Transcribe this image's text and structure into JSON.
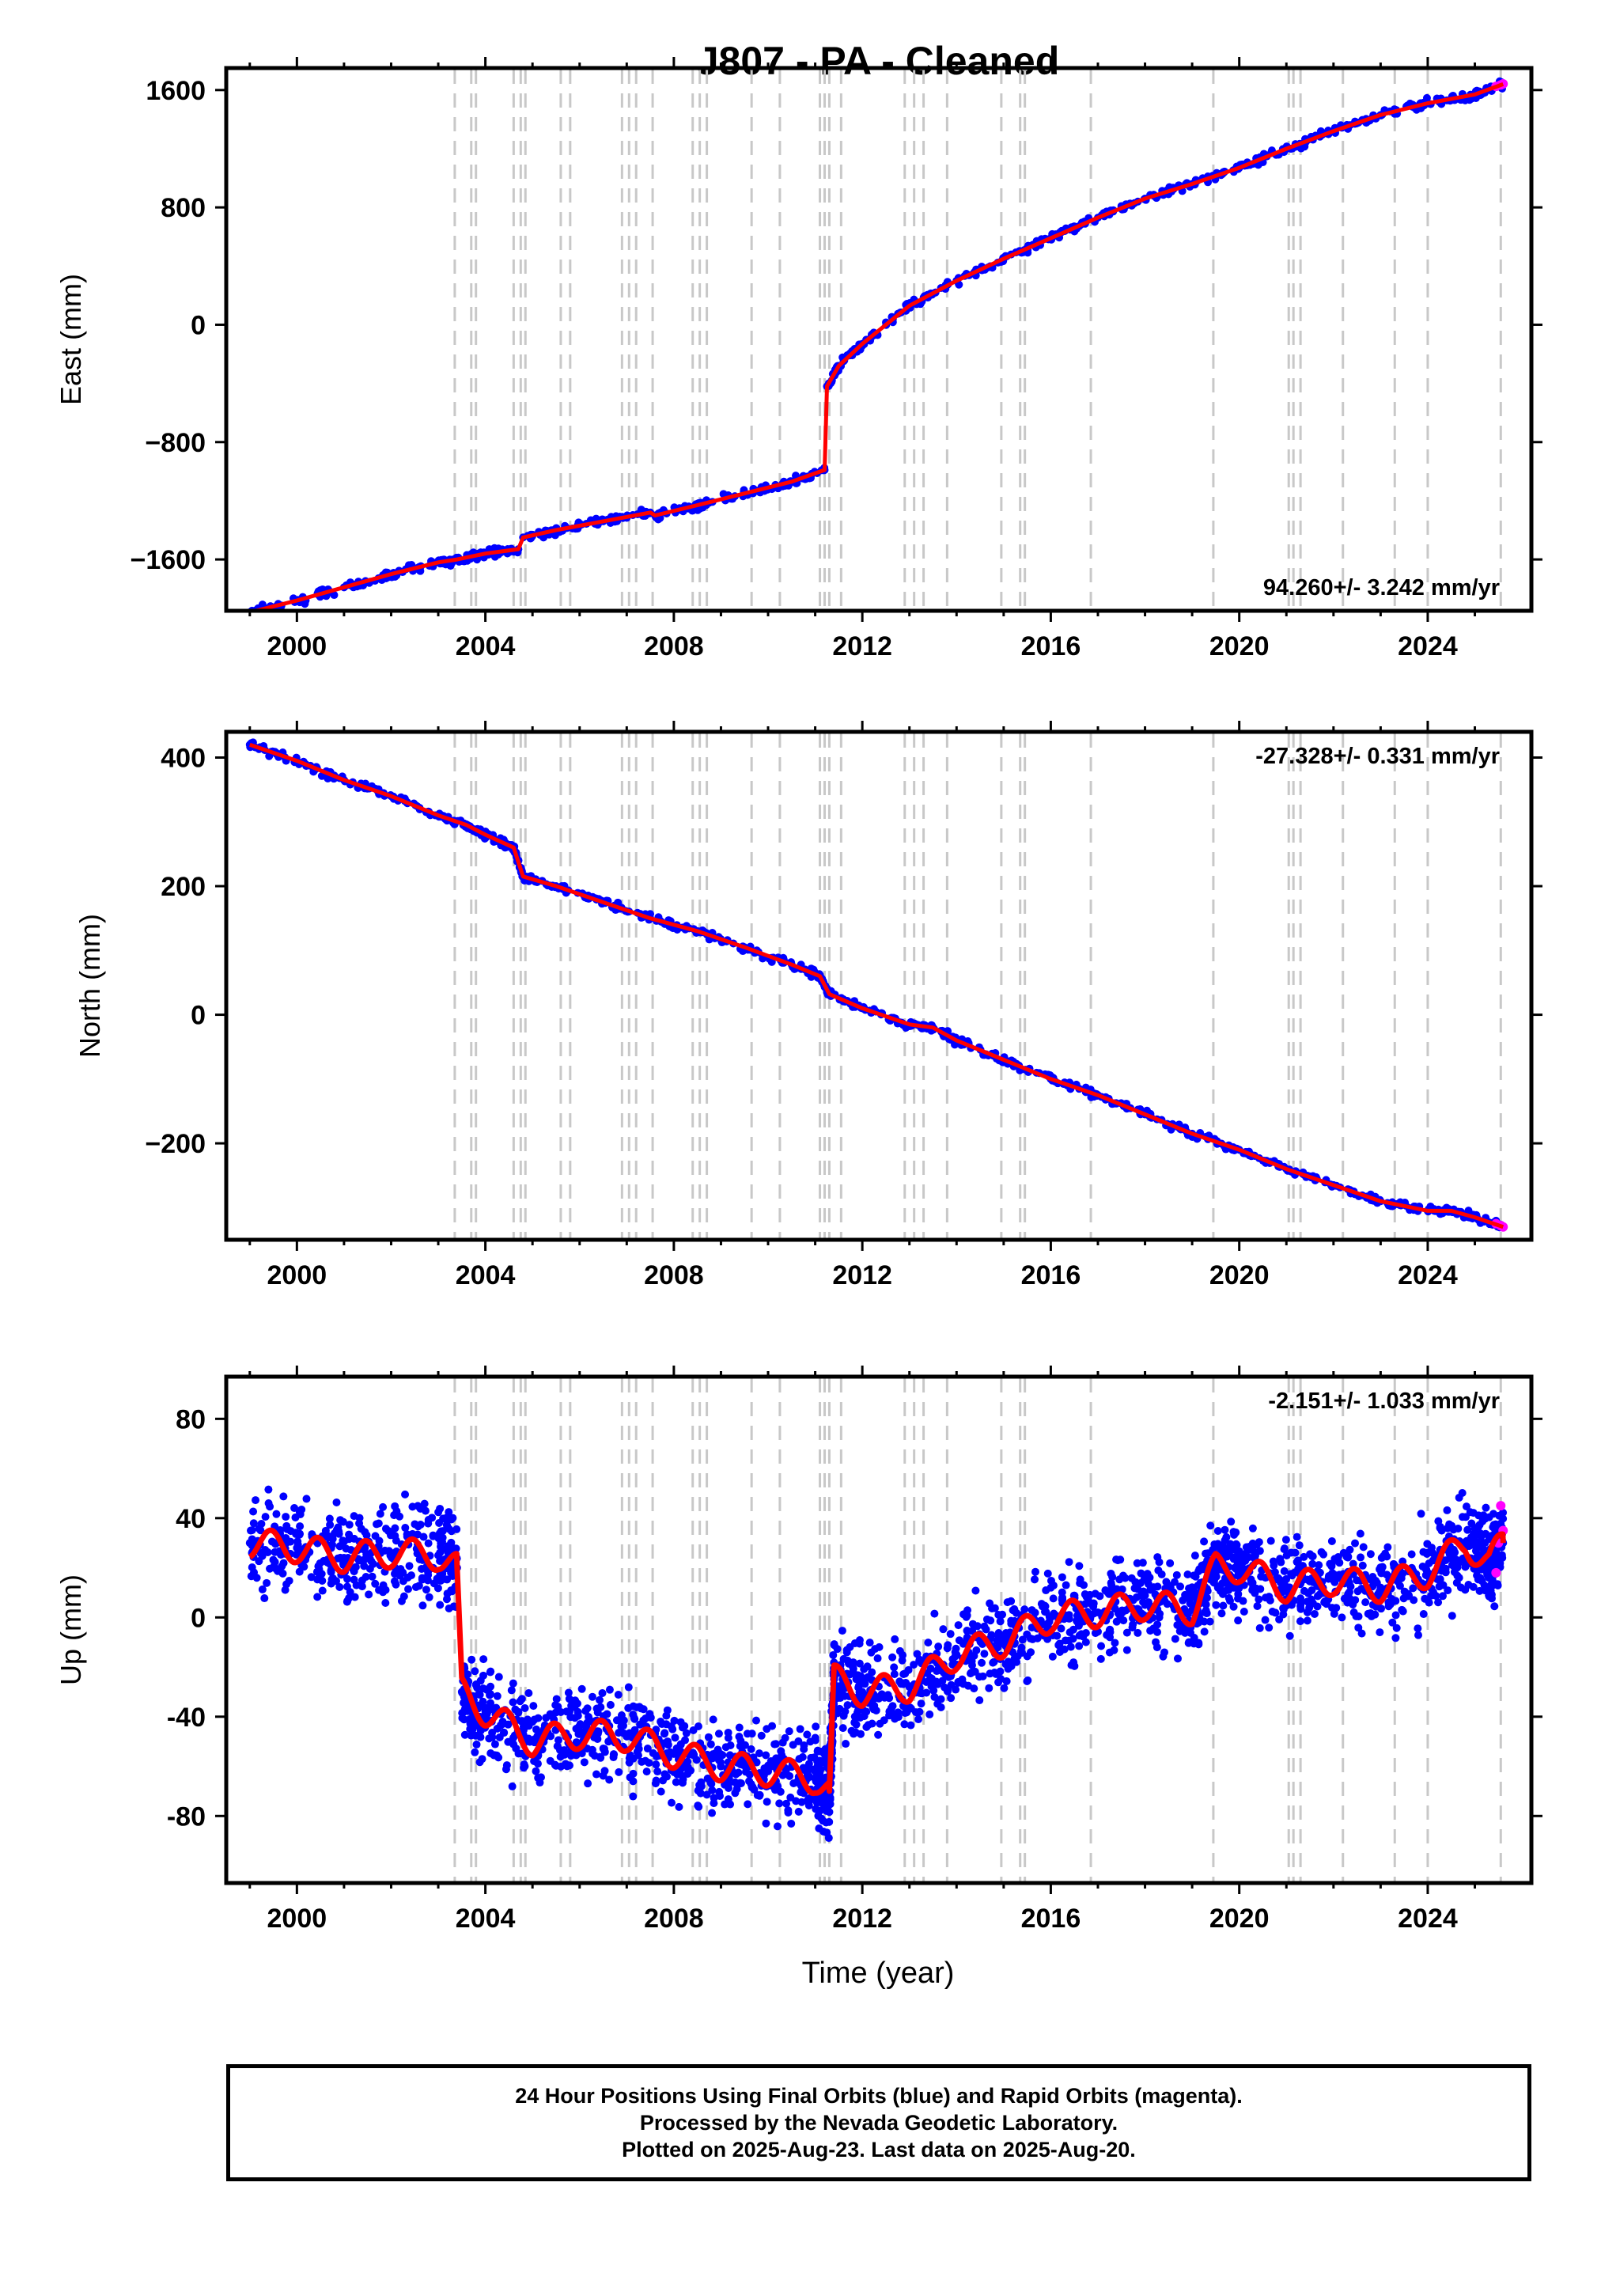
{
  "title": "J807  - PA - Cleaned",
  "xlabel": "Time (year)",
  "x_ticks": [
    "2000",
    "2004",
    "2008",
    "2012",
    "2016",
    "2020",
    "2024"
  ],
  "colors": {
    "final_orbits": "#0000ff",
    "rapid_orbits": "#ff00ff",
    "model": "#ff0000",
    "event_lines": "#c8c8c8"
  },
  "event_lines_years": [
    2003.35,
    2003.7,
    2003.8,
    2004.6,
    2004.75,
    2004.85,
    2005.6,
    2005.8,
    2006.9,
    2007.05,
    2007.2,
    2007.55,
    2008.4,
    2008.55,
    2008.7,
    2009.65,
    2010.25,
    2011.1,
    2011.2,
    2011.3,
    2011.55,
    2012.9,
    2013.1,
    2013.3,
    2013.8,
    2014.95,
    2015.35,
    2015.45,
    2016.85,
    2019.45,
    2021.05,
    2021.15,
    2021.3,
    2022.2,
    2023.3,
    2024.0,
    2025.55
  ],
  "chart_data": [
    {
      "type": "scatter",
      "panel": "east",
      "ylabel": "East (mm)",
      "y_ticks": [
        "1600",
        "800",
        "0",
        "−800",
        "−1600"
      ],
      "ylim": [
        -1950,
        1750
      ],
      "xlim": [
        1998.5,
        2026.2
      ],
      "rate_text": "94.260+/- 3.242 mm/yr",
      "series": [
        {
          "name": "Final Orbits",
          "x": [
            1999.0,
            2000.0,
            2001.0,
            2002.0,
            2003.0,
            2003.4,
            2004.0,
            2004.7,
            2004.8,
            2005.5,
            2006.5,
            2007.5,
            2007.6,
            2008.5,
            2009.5,
            2010.5,
            2011.2,
            2011.25,
            2011.5,
            2012.0,
            2013.0,
            2014.0,
            2015.0,
            2016.0,
            2017.0,
            2018.0,
            2019.0,
            2020.0,
            2021.0,
            2022.0,
            2023.0,
            2024.0,
            2025.0,
            2025.6
          ],
          "y": [
            -1960,
            -1880,
            -1790,
            -1700,
            -1620,
            -1600,
            -1560,
            -1530,
            -1450,
            -1400,
            -1340,
            -1280,
            -1300,
            -1230,
            -1150,
            -1070,
            -990,
            -420,
            -280,
            -130,
            130,
            300,
            450,
            590,
            730,
            860,
            960,
            1070,
            1200,
            1320,
            1430,
            1510,
            1570,
            1640
          ]
        },
        {
          "name": "Rapid Orbits",
          "x": [
            2025.45,
            2025.55,
            2025.6
          ],
          "y": [
            1625,
            1635,
            1642
          ]
        }
      ]
    },
    {
      "type": "scatter",
      "panel": "north",
      "ylabel": "North (mm)",
      "y_ticks": [
        "400",
        "200",
        "0",
        "−200"
      ],
      "ylim": [
        -350,
        440
      ],
      "xlim": [
        1998.5,
        2026.2
      ],
      "rate_text": "-27.328+/- 0.331 mm/yr",
      "series": [
        {
          "name": "Final Orbits",
          "x": [
            1999.0,
            2000.0,
            2001.0,
            2002.0,
            2003.0,
            2003.6,
            2004.0,
            2004.6,
            2004.8,
            2005.5,
            2006.5,
            2007.5,
            2008.5,
            2009.5,
            2010.5,
            2011.1,
            2011.3,
            2012.0,
            2013.0,
            2013.5,
            2014.0,
            2015.0,
            2016.0,
            2017.0,
            2018.0,
            2019.0,
            2020.0,
            2021.0,
            2022.0,
            2023.0,
            2024.0,
            2024.5,
            2025.0,
            2025.6
          ],
          "y": [
            420,
            395,
            365,
            340,
            310,
            295,
            280,
            260,
            215,
            200,
            175,
            150,
            130,
            105,
            78,
            60,
            32,
            10,
            -15,
            -20,
            -40,
            -70,
            -100,
            -125,
            -155,
            -185,
            -210,
            -240,
            -265,
            -290,
            -305,
            -305,
            -315,
            -330
          ]
        },
        {
          "name": "Rapid Orbits",
          "x": [
            2025.45,
            2025.55,
            2025.6
          ],
          "y": [
            -325,
            -328,
            -330
          ]
        }
      ]
    },
    {
      "type": "scatter",
      "panel": "up",
      "ylabel": "Up (mm)",
      "y_ticks": [
        "80",
        "40",
        "0",
        "-40",
        "-80"
      ],
      "ylim": [
        -107,
        97
      ],
      "xlim": [
        1998.5,
        2026.2
      ],
      "rate_text": "-2.151+/- 1.033 mm/yr",
      "series": [
        {
          "name": "Final Orbits",
          "x": [
            1999.0,
            2000.0,
            2001.0,
            2002.0,
            2003.0,
            2003.4,
            2003.5,
            2004.0,
            2005.0,
            2006.0,
            2007.0,
            2008.0,
            2009.0,
            2010.0,
            2011.0,
            2011.3,
            2011.4,
            2012.0,
            2013.0,
            2014.0,
            2015.0,
            2016.0,
            2017.0,
            2018.0,
            2019.0,
            2019.5,
            2020.0,
            2021.0,
            2022.0,
            2023.0,
            2024.0,
            2024.8,
            2025.3,
            2025.6
          ],
          "y": [
            30,
            28,
            24,
            26,
            25,
            20,
            -30,
            -38,
            -50,
            -47,
            -48,
            -55,
            -60,
            -62,
            -65,
            -70,
            -25,
            -30,
            -28,
            -15,
            -10,
            0,
            2,
            5,
            3,
            20,
            20,
            12,
            15,
            12,
            18,
            30,
            22,
            30
          ]
        },
        {
          "name": "Rapid Orbits",
          "x": [
            2025.45,
            2025.5,
            2025.55,
            2025.6
          ],
          "y": [
            18,
            30,
            45,
            35
          ]
        }
      ]
    }
  ],
  "footer": {
    "line1": "24 Hour Positions Using Final Orbits (blue) and Rapid Orbits (magenta).",
    "line2": "Processed by the Nevada Geodetic Laboratory.",
    "line3": "Plotted on 2025-Aug-23. Last data on 2025-Aug-20."
  }
}
